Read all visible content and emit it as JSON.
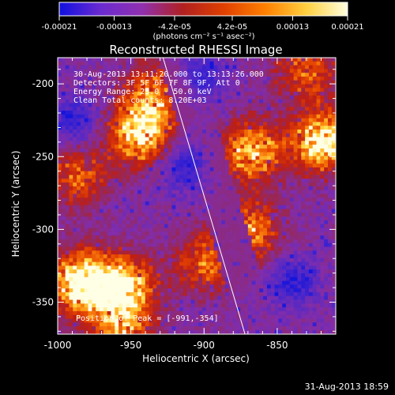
{
  "colorbar": {
    "ticks": [
      "-0.00021",
      "-0.00013",
      "-4.2e-05",
      "4.2e-05",
      "0.00013",
      "0.00021"
    ],
    "tick_values": [
      -0.00021,
      -0.00013,
      -4.2e-05,
      4.2e-05,
      0.00013,
      0.00021
    ],
    "range": [
      -0.00021,
      0.00021
    ],
    "units": "(photons cm⁻² s⁻¹ asec⁻²)",
    "colors": [
      "#1010e0",
      "#6a2bd0",
      "#9030b0",
      "#b02020",
      "#e04000",
      "#ff8000",
      "#ffd040",
      "#ffffe0"
    ]
  },
  "chart_data": {
    "type": "heatmap",
    "title": "Reconstructed RHESSI Image",
    "xlabel": "Heliocentric X (arcsec)",
    "ylabel": "Heliocentric Y (arcsec)",
    "xlim": [
      -1000,
      -810
    ],
    "ylim": [
      -372,
      -182
    ],
    "xticks": [
      -1000,
      -950,
      -900,
      -850
    ],
    "yticks": [
      -200,
      -250,
      -300,
      -350
    ],
    "limb_line": {
      "x": [
        -928,
        -872
      ],
      "y": [
        -182,
        -372
      ]
    },
    "bright_regions": [
      {
        "x": -985,
        "y": -335,
        "level": 1.0
      },
      {
        "x": -955,
        "y": -338,
        "level": 0.8
      },
      {
        "x": -945,
        "y": -233,
        "level": 0.85
      },
      {
        "x": -868,
        "y": -245,
        "level": 0.75
      },
      {
        "x": -820,
        "y": -238,
        "level": 0.9
      },
      {
        "x": -935,
        "y": -205,
        "level": 0.55
      },
      {
        "x": -988,
        "y": -262,
        "level": 0.5
      },
      {
        "x": -870,
        "y": -300,
        "level": 0.6
      },
      {
        "x": -900,
        "y": -322,
        "level": 0.5
      },
      {
        "x": -958,
        "y": -368,
        "level": 0.55
      },
      {
        "x": -832,
        "y": -190,
        "level": 0.5
      }
    ],
    "dim_regions": [
      {
        "x": -915,
        "y": -255
      },
      {
        "x": -840,
        "y": -335
      },
      {
        "x": -905,
        "y": -195
      },
      {
        "x": -990,
        "y": -225
      }
    ]
  },
  "annotations": {
    "time": "30-Aug-2013 13:11:20.000 to 13:13:26.000",
    "detectors": "Detectors: 3F 5F 6F 7F 8F 9F, Att 0",
    "energy": "Energy Range: 25.0 - 50.0 keV",
    "clean": "Clean    Total counts: 8.20E+03",
    "peak": "Position of Peak = [-991,-354]"
  },
  "timestamp": "31-Aug-2013 18:59"
}
